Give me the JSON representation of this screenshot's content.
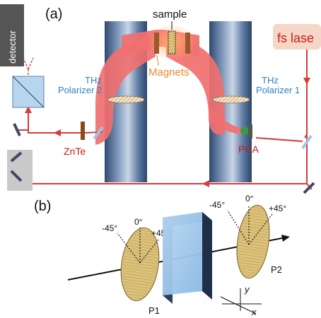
{
  "panel_a": {
    "label": "(a)",
    "detector": "detector",
    "sample": "sample",
    "magnets": "Magnets",
    "thz_polarizer_2": [
      "THz",
      "Polarizer 2"
    ],
    "thz_polarizer_1": [
      "THz",
      "Polarizer 1"
    ],
    "fs_laser": "fs lase",
    "znte": "ZnTe",
    "pca": "PCA"
  },
  "panel_b": {
    "label": "(b)",
    "p1": "P1",
    "p2": "P2",
    "p1_angles": {
      "minus45": "-45°",
      "zero": "0°",
      "plus45": "+45°"
    },
    "p2_angles": {
      "minus45": "-45°",
      "zero": "0°",
      "plus45": "+45°"
    },
    "axis_y": "y",
    "axis_x": "x"
  },
  "colors": {
    "beam": "#d83a3a",
    "thz_beam": "#f07070",
    "magnet_blue": "#4a6a96",
    "label_blue": "#2f7fc1",
    "label_red": "#cc1a1a",
    "label_orange": "#e8892b",
    "laser_box": "#f6d7c7",
    "polarizer_fill": "#dcc27c"
  }
}
